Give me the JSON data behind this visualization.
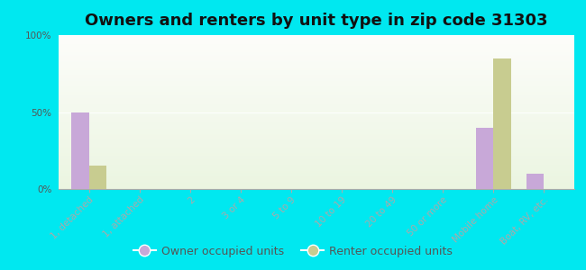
{
  "title": "Owners and renters by unit type in zip code 31303",
  "categories": [
    "1, detached",
    "1, attached",
    "2",
    "3 or 4",
    "5 to 9",
    "10 to 19",
    "20 to 49",
    "50 or more",
    "Mobile home",
    "Boat, RV, etc."
  ],
  "owner_values": [
    50,
    0,
    0,
    0,
    0,
    0,
    0,
    0,
    40,
    10
  ],
  "renter_values": [
    15,
    0,
    0,
    0,
    0,
    0,
    0,
    0,
    85,
    0
  ],
  "owner_color": "#c8a8d8",
  "renter_color": "#c8cc90",
  "outer_bg": "#00e8f0",
  "ylim": [
    0,
    100
  ],
  "yticks": [
    0,
    50,
    100
  ],
  "ytick_labels": [
    "0%",
    "50%",
    "100%"
  ],
  "bar_width": 0.35,
  "legend_owner": "Owner occupied units",
  "legend_renter": "Renter occupied units",
  "title_fontsize": 13,
  "tick_fontsize": 7.5,
  "legend_fontsize": 9
}
